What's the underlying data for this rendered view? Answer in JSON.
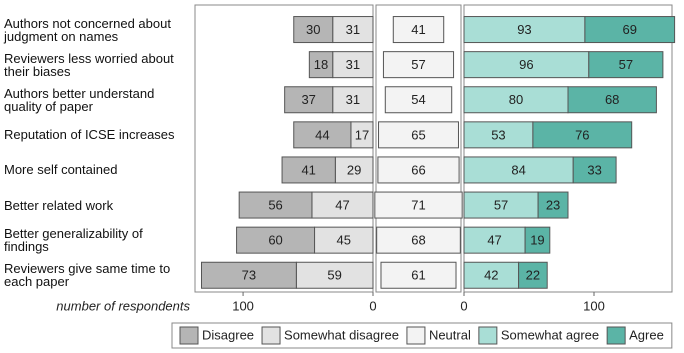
{
  "chart_data": {
    "type": "diverging-bar",
    "categories": [
      "Authors not concerned about judgment on names",
      "Reviewers less worried about their biases",
      "Authors better understand quality of paper",
      "Reputation of ICSE increases",
      "More self contained",
      "Better related work",
      "Better generalizability of findings",
      "Reviewers give same time to each paper"
    ],
    "series": [
      {
        "name": "Disagree",
        "color": "#b5b5b5",
        "values": [
          30,
          18,
          37,
          44,
          41,
          56,
          60,
          73
        ]
      },
      {
        "name": "Somewhat disagree",
        "color": "#e2e2e2",
        "values": [
          31,
          31,
          31,
          17,
          29,
          47,
          45,
          59
        ]
      },
      {
        "name": "Neutral",
        "color": "#f3f3f3",
        "values": [
          41,
          57,
          54,
          65,
          66,
          71,
          68,
          61
        ]
      },
      {
        "name": "Somewhat agree",
        "color": "#a9ded6",
        "values": [
          93,
          96,
          80,
          53,
          84,
          57,
          47,
          42
        ]
      },
      {
        "name": "Agree",
        "color": "#5bb4a6",
        "values": [
          69,
          57,
          68,
          76,
          33,
          23,
          19,
          22
        ]
      }
    ],
    "xlabel": "number of respondents",
    "xlim_left": [
      0,
      137
    ],
    "xticks_left": [
      100,
      0
    ],
    "xlim_right": [
      0,
      160
    ],
    "xticks_right": [
      0,
      100
    ]
  }
}
